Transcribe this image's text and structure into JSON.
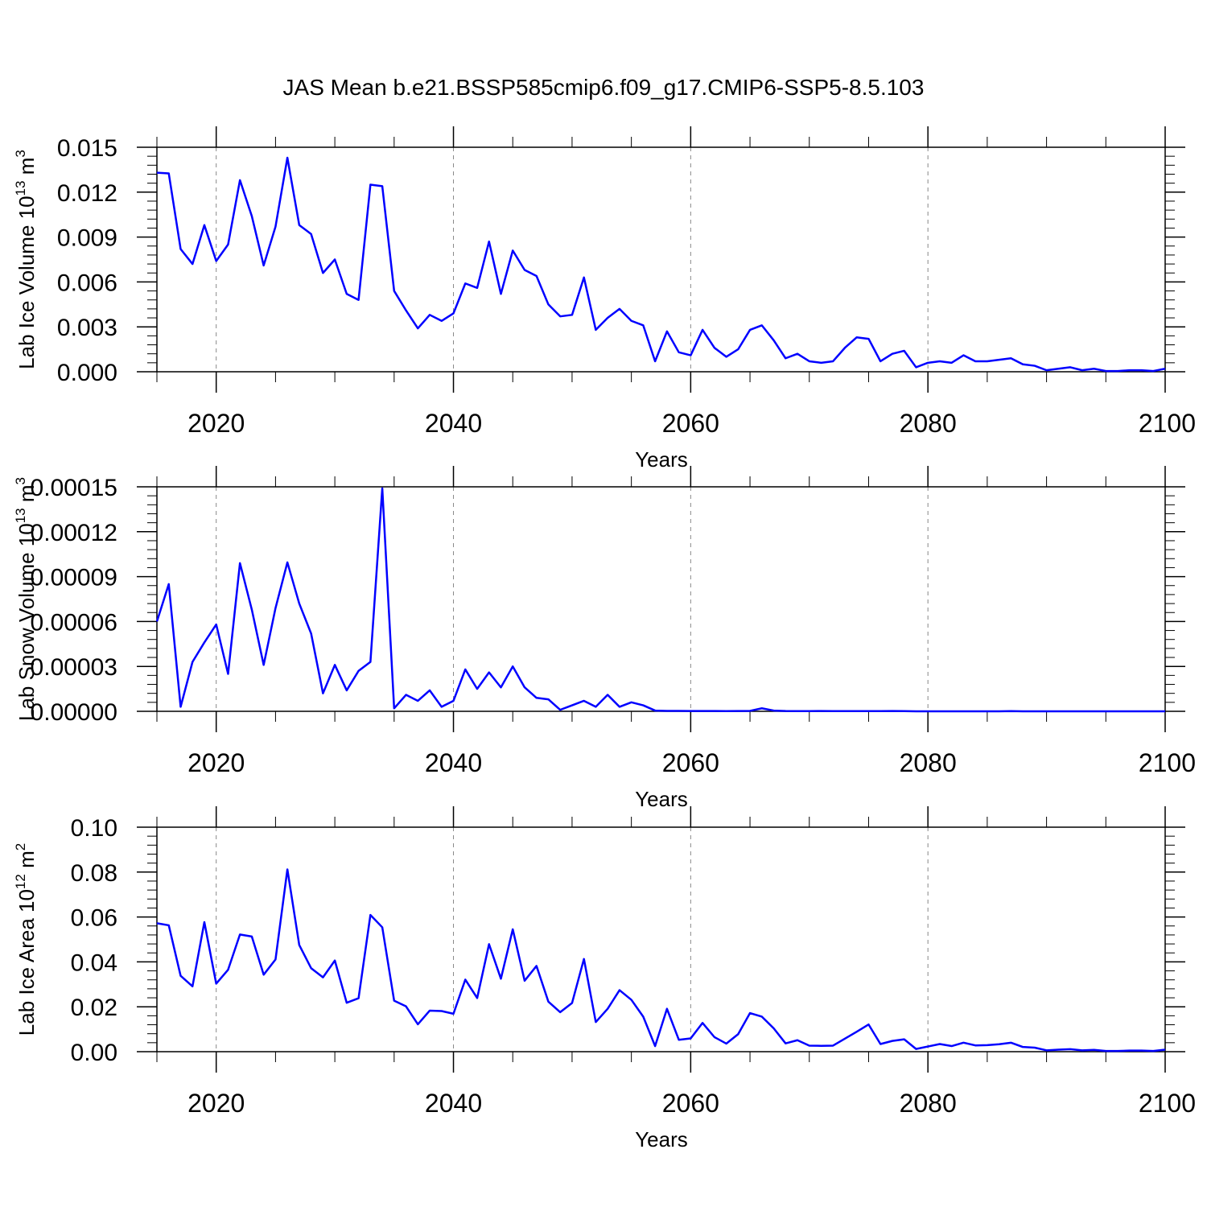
{
  "title": "JAS Mean b.e21.BSSP585cmip6.f09_g17.CMIP6-SSP5-8.5.103",
  "colors": {
    "line": "#0000ff",
    "axis": "#000000",
    "grid": "#888888"
  },
  "chart_data": [
    {
      "type": "line",
      "ylabel": {
        "prefix": "Lab Ice Volume 10",
        "exp": "13",
        "unit": " m",
        "unit_exp": "3"
      },
      "xlabel": "Years",
      "xlim": [
        2015,
        2100
      ],
      "ylim": [
        0,
        0.015
      ],
      "xticks": [
        2020,
        2040,
        2060,
        2080,
        2100
      ],
      "yticks": [
        0.0,
        0.003,
        0.006,
        0.009,
        0.012,
        0.015
      ],
      "ytick_labels": [
        "0.000",
        "0.003",
        "0.006",
        "0.009",
        "0.012",
        "0.015"
      ],
      "x_start": 2015,
      "values": [
        0.0133,
        0.01325,
        0.0082,
        0.0072,
        0.0098,
        0.0074,
        0.0085,
        0.0128,
        0.0104,
        0.0071,
        0.0097,
        0.0143,
        0.0098,
        0.0092,
        0.0066,
        0.0075,
        0.0052,
        0.0048,
        0.0125,
        0.0124,
        0.0054,
        0.0041,
        0.0029,
        0.0038,
        0.0034,
        0.0039,
        0.0059,
        0.0056,
        0.0087,
        0.0052,
        0.0081,
        0.0068,
        0.0064,
        0.0045,
        0.0037,
        0.0038,
        0.0063,
        0.0028,
        0.0036,
        0.0042,
        0.0034,
        0.0031,
        0.0007,
        0.0027,
        0.0013,
        0.0011,
        0.0028,
        0.0016,
        0.001,
        0.0015,
        0.0028,
        0.0031,
        0.0021,
        0.0009,
        0.0012,
        0.0007,
        0.0006,
        0.0007,
        0.0016,
        0.0023,
        0.0022,
        0.0007,
        0.0012,
        0.0014,
        0.0003,
        0.0006,
        0.0007,
        0.0006,
        0.0011,
        0.0007,
        0.0007,
        0.0008,
        0.0009,
        0.0005,
        0.0004,
        0.0001,
        0.0002,
        0.0003,
        0.0001,
        0.0002,
        5e-05,
        5e-05,
        0.0001,
        0.0001,
        5e-05,
        0.0002
      ]
    },
    {
      "type": "line",
      "ylabel": {
        "prefix": "Lab Snow Volume 10",
        "exp": "13",
        "unit": " m",
        "unit_exp": "3"
      },
      "xlabel": "Years",
      "xlim": [
        2015,
        2100
      ],
      "ylim": [
        0,
        0.00015
      ],
      "xticks": [
        2020,
        2040,
        2060,
        2080,
        2100
      ],
      "yticks": [
        0,
        3e-05,
        6e-05,
        9e-05,
        0.00012,
        0.00015
      ],
      "ytick_labels": [
        "0.00000",
        "0.00003",
        "0.00006",
        "0.00009",
        "0.00012",
        "0.00015"
      ],
      "x_start": 2015,
      "values": [
        6e-05,
        8.5e-05,
        3e-06,
        3.3e-05,
        4.6e-05,
        5.8e-05,
        2.5e-05,
        9.9e-05,
        6.8e-05,
        3.1e-05,
        6.9e-05,
        9.95e-05,
        7.2e-05,
        5.2e-05,
        1.2e-05,
        3.1e-05,
        1.4e-05,
        2.7e-05,
        3.3e-05,
        0.000149,
        2e-06,
        1.1e-05,
        7e-06,
        1.4e-05,
        3e-06,
        7e-06,
        2.8e-05,
        1.5e-05,
        2.6e-05,
        1.6e-05,
        3e-05,
        1.6e-05,
        9e-06,
        8e-06,
        1e-06,
        4e-06,
        7e-06,
        3e-06,
        1.1e-05,
        3e-06,
        6e-06,
        4e-06,
        5e-07,
        3e-07,
        3e-07,
        2e-07,
        2e-07,
        2e-07,
        1e-07,
        2e-07,
        3e-07,
        2e-06,
        5e-07,
        2e-07,
        1e-07,
        1e-07,
        2e-07,
        1e-07,
        1e-07,
        1e-07,
        1e-07,
        1e-07,
        2e-07,
        1e-07,
        0,
        0,
        0,
        0,
        0,
        0,
        0,
        0,
        1e-07,
        0,
        0,
        0,
        0,
        0,
        0,
        0,
        0,
        0,
        0,
        0,
        0,
        0
      ]
    },
    {
      "type": "line",
      "ylabel": {
        "prefix": "Lab Ice Area 10",
        "exp": "12",
        "unit": " m",
        "unit_exp": "2"
      },
      "xlabel": "Years",
      "xlim": [
        2015,
        2100
      ],
      "ylim": [
        0,
        0.1
      ],
      "xticks": [
        2020,
        2040,
        2060,
        2080,
        2100
      ],
      "yticks": [
        0.0,
        0.02,
        0.04,
        0.06,
        0.08,
        0.1
      ],
      "ytick_labels": [
        "0.00",
        "0.02",
        "0.04",
        "0.06",
        "0.08",
        "0.10"
      ],
      "x_start": 2015,
      "values": [
        0.0572,
        0.0563,
        0.0338,
        0.0291,
        0.0577,
        0.0303,
        0.0365,
        0.0522,
        0.0513,
        0.0343,
        0.0411,
        0.0812,
        0.0475,
        0.0372,
        0.0331,
        0.0406,
        0.0218,
        0.0238,
        0.0609,
        0.0554,
        0.0227,
        0.0202,
        0.0122,
        0.0183,
        0.0181,
        0.0169,
        0.0321,
        0.0239,
        0.0479,
        0.0325,
        0.0545,
        0.0316,
        0.0382,
        0.0223,
        0.0176,
        0.0217,
        0.0413,
        0.0132,
        0.0191,
        0.0274,
        0.0231,
        0.0156,
        0.0025,
        0.0191,
        0.0053,
        0.0059,
        0.0128,
        0.0065,
        0.0036,
        0.0078,
        0.0172,
        0.0156,
        0.0104,
        0.0037,
        0.0051,
        0.0027,
        0.0026,
        0.0027,
        0.0058,
        0.0089,
        0.0121,
        0.0034,
        0.0048,
        0.0055,
        0.0012,
        0.0023,
        0.0034,
        0.0025,
        0.004,
        0.0028,
        0.0029,
        0.0033,
        0.004,
        0.0021,
        0.0018,
        0.0006,
        0.0009,
        0.0011,
        0.0006,
        0.0008,
        0.0003,
        0.0003,
        0.0005,
        0.0005,
        0.0003,
        0.0009
      ]
    }
  ]
}
